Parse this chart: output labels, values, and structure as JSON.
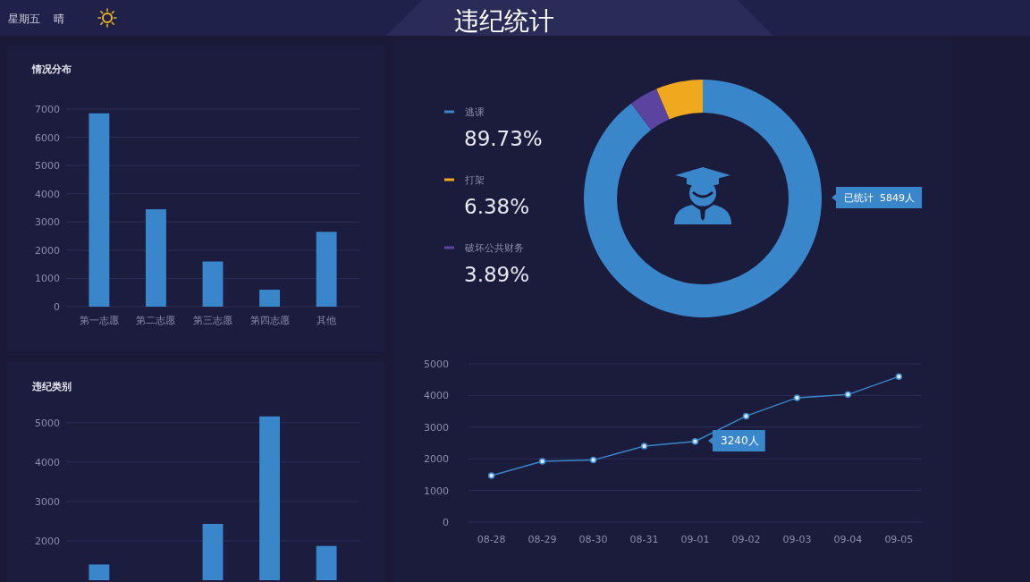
{
  "chart_data": [
    {
      "type": "other",
      "title": "违纪统计",
      "annotations": [
        "星期五",
        "晴"
      ]
    },
    {
      "type": "bar",
      "title": "情况分布",
      "categories": [
        "第一志愿",
        "第二志愿",
        "第三志愿",
        "第四志愿",
        "其他"
      ],
      "values": [
        6850,
        3450,
        1600,
        600,
        2650
      ],
      "color": "#3a86ca",
      "ylim": [
        0,
        7000
      ],
      "yticks": [
        0,
        1000,
        2000,
        3000,
        4000,
        5000,
        6000,
        7000
      ],
      "grid": "y"
    },
    {
      "type": "bar",
      "title": "违纪类别",
      "categories": [
        null,
        null,
        null,
        null,
        null
      ],
      "values": [
        1400,
        null,
        2430,
        5160,
        1870
      ],
      "color": "#3a86ca",
      "ylim": [
        1000,
        5200
      ],
      "yticks": [
        2000,
        3000,
        4000,
        5000
      ],
      "grid": "y"
    },
    {
      "type": "donut",
      "categories": [
        "逃课",
        "打架",
        "破坏公共财务"
      ],
      "values": [
        89.73,
        6.38,
        3.89
      ],
      "colors": [
        "#3a86ca",
        "#f0a91f",
        "#5b43a0"
      ],
      "value_labels": [
        "89.73%",
        "6.38%",
        "3.89%"
      ],
      "legend": "left",
      "annotations": [
        "已统计  5849人"
      ]
    },
    {
      "type": "line",
      "categories": [
        "08-28",
        "08-29",
        "08-30",
        "08-31",
        "09-01",
        "09-02",
        "09-03",
        "09-04",
        "09-05"
      ],
      "values": [
        1470,
        1920,
        1960,
        2400,
        2550,
        3350,
        3930,
        4030,
        4600
      ],
      "color": "#3a86ca",
      "ylim": [
        0,
        5000
      ],
      "yticks": [
        0,
        1000,
        2000,
        3000,
        4000,
        5000
      ],
      "grid": "y",
      "marker": "circle",
      "annotations": [
        "3240人"
      ]
    }
  ]
}
